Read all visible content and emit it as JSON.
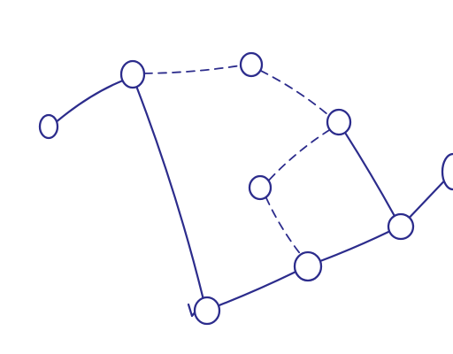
{
  "diagram": {
    "kind": "hand-drawn undirected graph",
    "colors": {
      "ink": "#2c2c8c",
      "paper": "#ffffff"
    },
    "nodes": [
      {
        "id": "n1"
      },
      {
        "id": "n2"
      },
      {
        "id": "n3"
      },
      {
        "id": "n4"
      },
      {
        "id": "n5"
      },
      {
        "id": "n6"
      },
      {
        "id": "n7"
      },
      {
        "id": "n8"
      },
      {
        "id": "n9"
      }
    ],
    "edges": [
      {
        "from": "n1",
        "to": "n2",
        "style": "solid"
      },
      {
        "from": "n2",
        "to": "n3",
        "style": "dashed"
      },
      {
        "from": "n2",
        "to": "n9",
        "style": "solid"
      },
      {
        "from": "n3",
        "to": "n4",
        "style": "dashed"
      },
      {
        "from": "n4",
        "to": "n5",
        "style": "dashed"
      },
      {
        "from": "n4",
        "to": "n7",
        "style": "solid"
      },
      {
        "from": "n5",
        "to": "n6",
        "style": "dashed"
      },
      {
        "from": "n6",
        "to": "n7",
        "style": "solid"
      },
      {
        "from": "n7",
        "to": "n8",
        "style": "solid"
      },
      {
        "from": "n6",
        "to": "n9",
        "style": "solid"
      }
    ]
  }
}
